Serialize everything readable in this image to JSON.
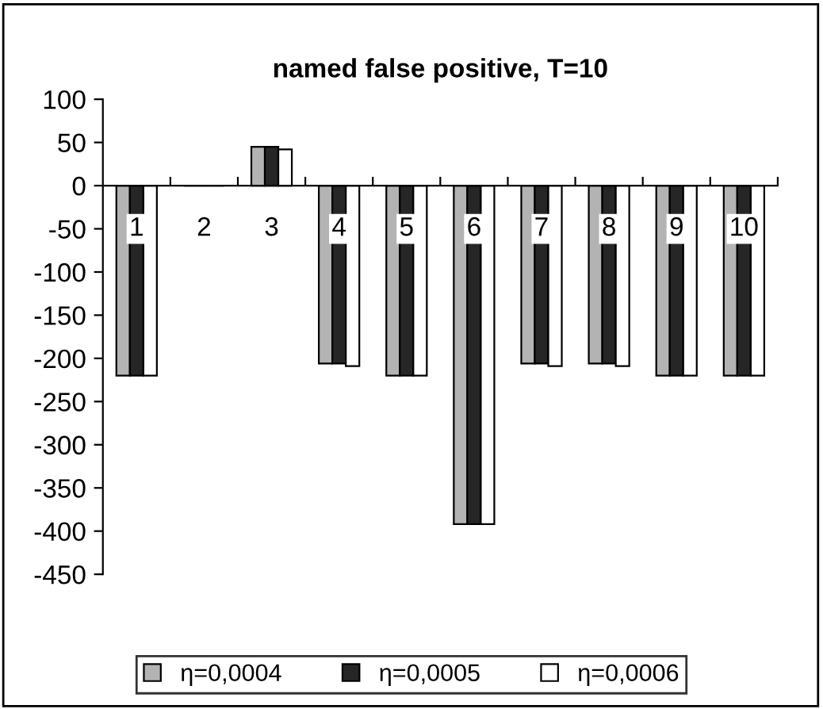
{
  "chart_data": {
    "type": "bar",
    "title": "named false positive, T=10",
    "categories": [
      "1",
      "2",
      "3",
      "4",
      "5",
      "6",
      "7",
      "8",
      "9",
      "10"
    ],
    "series": [
      {
        "name": "η=0,0004",
        "color": "#b3b3b3",
        "values": [
          -220,
          0,
          45,
          -206,
          -220,
          -392,
          -206,
          -206,
          -220,
          -220
        ]
      },
      {
        "name": "η=0,0005",
        "color": "#262626",
        "values": [
          -220,
          0,
          45,
          -206,
          -220,
          -392,
          -206,
          -206,
          -220,
          -220
        ]
      },
      {
        "name": "η=0,0006",
        "color": "#ffffff",
        "values": [
          -220,
          0,
          42,
          -209,
          -220,
          -392,
          -209,
          -209,
          -220,
          -220
        ]
      }
    ],
    "ylim": [
      -450,
      100
    ],
    "yticks": [
      -450,
      -400,
      -350,
      -300,
      -250,
      -200,
      -150,
      -100,
      -50,
      0,
      50,
      100
    ],
    "grid": false,
    "legend": "bottom"
  }
}
